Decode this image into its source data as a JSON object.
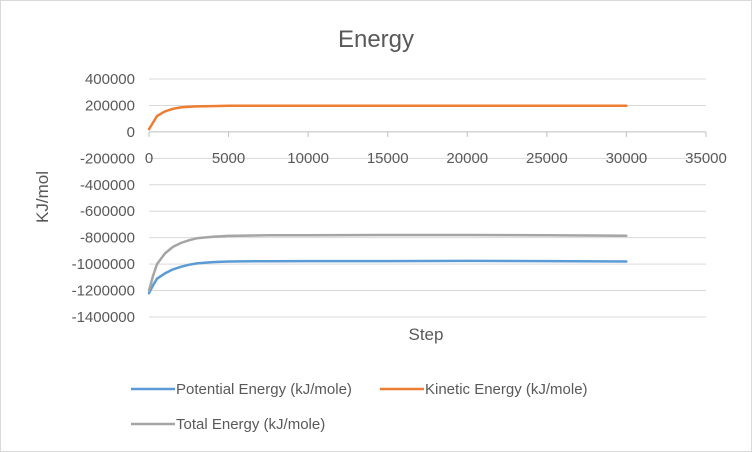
{
  "chart_data": {
    "type": "line",
    "title": "Energy",
    "xlabel": "Step",
    "ylabel": "KJ/mol",
    "xlim": [
      0,
      35000
    ],
    "ylim": [
      -1400000,
      400000
    ],
    "x_ticks": [
      0,
      5000,
      10000,
      15000,
      20000,
      25000,
      30000,
      35000
    ],
    "y_ticks": [
      400000,
      200000,
      0,
      -200000,
      -400000,
      -600000,
      -800000,
      -1000000,
      -1200000,
      -1400000
    ],
    "x_tick_labels": [
      "0",
      "5000",
      "10000",
      "15000",
      "20000",
      "25000",
      "30000",
      "35000"
    ],
    "y_tick_labels": [
      "400000",
      "200000",
      "0",
      "-200000",
      "-400000",
      "-600000",
      "-800000",
      "-1000000",
      "-1200000",
      "-1400000"
    ],
    "grid": true,
    "legend_position": "bottom",
    "series": [
      {
        "name": "Potential Energy (kJ/mole)",
        "color": "#5b9bd5",
        "x": [
          0,
          250,
          500,
          1000,
          1500,
          2000,
          2500,
          3000,
          4000,
          5000,
          7500,
          10000,
          15000,
          20000,
          25000,
          30000
        ],
        "values": [
          -1220000,
          -1160000,
          -1110000,
          -1070000,
          -1040000,
          -1020000,
          -1005000,
          -995000,
          -985000,
          -980000,
          -978000,
          -977000,
          -977000,
          -976000,
          -977000,
          -980000
        ]
      },
      {
        "name": "Kinetic Energy (kJ/mole)",
        "color": "#ed7d31",
        "x": [
          0,
          250,
          500,
          1000,
          1500,
          2000,
          2500,
          3000,
          4000,
          5000,
          7500,
          10000,
          15000,
          20000,
          25000,
          30000
        ],
        "values": [
          20000,
          70000,
          120000,
          155000,
          175000,
          185000,
          190000,
          193000,
          195000,
          197000,
          198000,
          198000,
          198000,
          198000,
          198000,
          198000
        ]
      },
      {
        "name": "Total Energy (kJ/mole)",
        "color": "#a5a5a5",
        "x": [
          0,
          250,
          500,
          1000,
          1500,
          2000,
          2500,
          3000,
          4000,
          5000,
          7500,
          10000,
          15000,
          20000,
          25000,
          30000
        ],
        "values": [
          -1200000,
          -1090000,
          -1000000,
          -920000,
          -870000,
          -840000,
          -820000,
          -805000,
          -793000,
          -787000,
          -782000,
          -781000,
          -780000,
          -780000,
          -781000,
          -785000
        ]
      }
    ]
  }
}
